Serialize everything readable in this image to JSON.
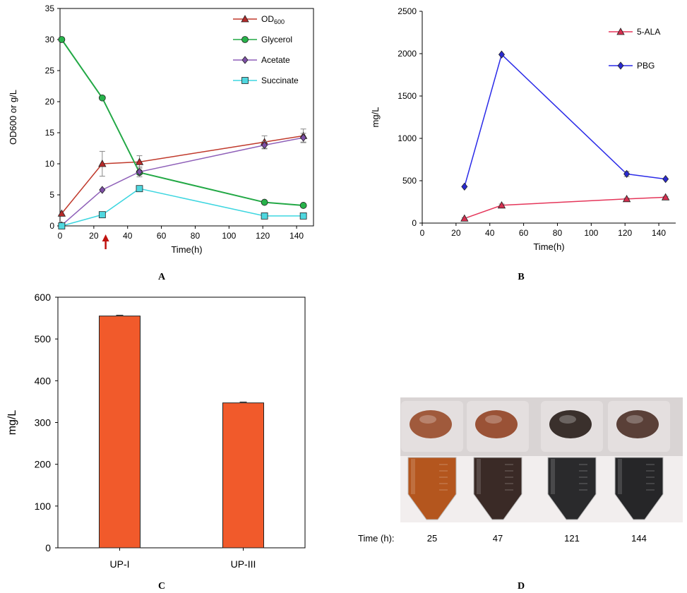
{
  "panels": [
    "A",
    "B",
    "C",
    "D"
  ],
  "chart_data": [
    {
      "panel": "A",
      "type": "line",
      "xlabel": "Time(h)",
      "ylabel": "OD600 or g/L",
      "xlim": [
        0,
        150
      ],
      "ylim": [
        0,
        35
      ],
      "xticks": [
        0,
        20,
        40,
        60,
        80,
        100,
        120,
        140
      ],
      "yticks": [
        0,
        5,
        10,
        15,
        20,
        25,
        30,
        35
      ],
      "annotation_arrow_x": 27,
      "series": [
        {
          "name": "OD",
          "name_sub": "600",
          "color": "#c0392b",
          "marker": "triangle",
          "marker_fill": "#b52a2a",
          "x": [
            1,
            25,
            47,
            121,
            144
          ],
          "y": [
            2.0,
            10.0,
            10.3,
            13.5,
            14.5
          ],
          "err": [
            0,
            2.0,
            1.0,
            1.0,
            1.1
          ]
        },
        {
          "name": "Glycerol",
          "color": "#22a845",
          "marker": "circle",
          "marker_fill": "#27b24a",
          "x": [
            1,
            25,
            47,
            121,
            144
          ],
          "y": [
            30.0,
            20.6,
            8.6,
            3.8,
            3.3
          ],
          "err": [
            0,
            0,
            0,
            0,
            0
          ]
        },
        {
          "name": "Acetate",
          "color": "#8e5fb8",
          "marker": "diamond",
          "marker_fill": "#7d4fa6",
          "x": [
            1,
            25,
            47,
            121,
            144
          ],
          "y": [
            0.1,
            5.8,
            8.7,
            13.0,
            14.2
          ],
          "err": [
            0,
            0,
            0.8,
            0.6,
            0.7
          ]
        },
        {
          "name": "Succinate",
          "color": "#3ed6e0",
          "marker": "square",
          "marker_fill": "#4fd7df",
          "x": [
            1,
            25,
            47,
            121,
            144
          ],
          "y": [
            0.0,
            1.8,
            6.0,
            1.6,
            1.6
          ],
          "err": [
            0,
            0,
            0,
            0,
            0
          ]
        }
      ]
    },
    {
      "panel": "B",
      "type": "line",
      "xlabel": "Time(h)",
      "ylabel": "mg/L",
      "xlim": [
        0,
        150
      ],
      "ylim": [
        0,
        2500
      ],
      "xticks": [
        0,
        20,
        40,
        60,
        80,
        100,
        120,
        140
      ],
      "yticks": [
        0,
        500,
        1000,
        1500,
        2000,
        2500
      ],
      "series": [
        {
          "name": "5-ALA",
          "color": "#e5365a",
          "marker": "triangle",
          "marker_fill": "#d42f4f",
          "x": [
            25,
            47,
            121,
            144
          ],
          "y": [
            55,
            210,
            285,
            305
          ],
          "err": [
            10,
            15,
            10,
            10
          ]
        },
        {
          "name": "PBG",
          "color": "#2a2ae8",
          "marker": "diamond",
          "marker_fill": "#2a2ad0",
          "x": [
            25,
            47,
            121,
            144
          ],
          "y": [
            430,
            1990,
            580,
            520
          ],
          "err": [
            0,
            0,
            30,
            0
          ]
        }
      ]
    },
    {
      "panel": "C",
      "type": "bar",
      "ylabel": "mg/L",
      "ylim": [
        0,
        600
      ],
      "yticks": [
        0,
        100,
        200,
        300,
        400,
        500,
        600
      ],
      "categories": [
        "UP-I",
        "UP-III"
      ],
      "values": [
        555,
        347
      ],
      "err": [
        2,
        2
      ],
      "color": "#f15a2b"
    }
  ],
  "photo": {
    "panel": "D",
    "time_label": "Time (h):",
    "times": [
      "25",
      "47",
      "121",
      "144"
    ],
    "top_colors": [
      "#a05a3c",
      "#9a5236",
      "#3a302c",
      "#5a4038"
    ],
    "bottom_colors": [
      "#b4561e",
      "#3a2a26",
      "#2a2a2c",
      "#262628"
    ]
  }
}
